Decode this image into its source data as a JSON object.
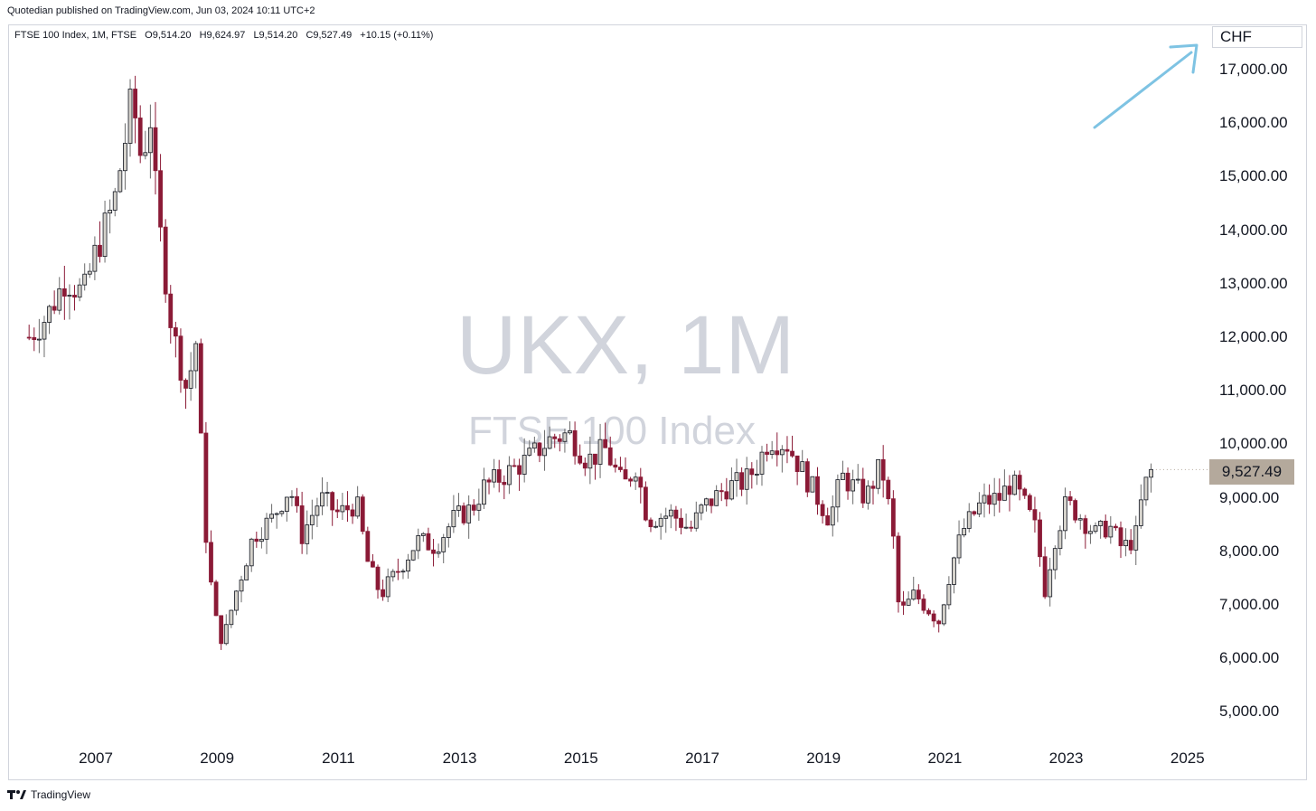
{
  "header": {
    "published": "Quotedian published on TradingView.com, Jun 03, 2024 10:11 UTC+2"
  },
  "legend": {
    "symbol": "FTSE 100 Index, 1M, FTSE",
    "open": "O9,514.20",
    "high": "H9,624.97",
    "low": "L9,514.20",
    "close": "C9,527.49",
    "change": "+10.15 (+0.11%)"
  },
  "watermark": {
    "symbol": "UKX, 1M",
    "description": "FTSE 100 Index"
  },
  "currency_label": "CHF",
  "last_price_label": "9,527.49",
  "footer": {
    "brand": "TradingView"
  },
  "colors": {
    "up": "#d5d2cb",
    "up_border": "#131722",
    "down": "#8b1a36",
    "price_tag": "#b4a99c",
    "arrow": "#7ec3e3",
    "watermark": "#d1d4dc"
  },
  "chart_data": {
    "type": "candlestick",
    "y_axis": {
      "min": 4500,
      "max": 17500,
      "ticks": [
        "5,000.00",
        "6,000.00",
        "7,000.00",
        "8,000.00",
        "9,000.00",
        "10,000.00",
        "11,000.00",
        "12,000.00",
        "13,000.00",
        "14,000.00",
        "15,000.00",
        "16,000.00",
        "17,000.00"
      ]
    },
    "x_axis": {
      "ticks": [
        "2007",
        "2009",
        "2011",
        "2013",
        "2015",
        "2017",
        "2019",
        "2021",
        "2023",
        "2025"
      ]
    },
    "series_points": [
      [
        "2005.9",
        12000
      ],
      [
        "2006.2",
        12400
      ],
      [
        "2006.5",
        13100
      ],
      [
        "2006.8",
        12800
      ],
      [
        "2007.0",
        13600
      ],
      [
        "2007.3",
        14500
      ],
      [
        "2007.5",
        15800
      ],
      [
        "2007.6",
        16500
      ],
      [
        "2007.75",
        15300
      ],
      [
        "2007.9",
        16100
      ],
      [
        "2008.0",
        14500
      ],
      [
        "2008.25",
        12200
      ],
      [
        "2008.5",
        11000
      ],
      [
        "2008.65",
        11900
      ],
      [
        "2008.8",
        8500
      ],
      [
        "2008.95",
        6800
      ],
      [
        "2009.1",
        6300
      ],
      [
        "2009.3",
        7200
      ],
      [
        "2009.6",
        8300
      ],
      [
        "2009.9",
        8600
      ],
      [
        "2010.2",
        9200
      ],
      [
        "2010.4",
        8300
      ],
      [
        "2010.7",
        9000
      ],
      [
        "2011.0",
        8700
      ],
      [
        "2011.3",
        8900
      ],
      [
        "2011.5",
        7700
      ],
      [
        "2011.7",
        7200
      ],
      [
        "2011.9",
        7500
      ],
      [
        "2012.3",
        8200
      ],
      [
        "2012.6",
        8100
      ],
      [
        "2012.9",
        8600
      ],
      [
        "2013.2",
        8800
      ],
      [
        "2013.4",
        9200
      ],
      [
        "2013.7",
        9400
      ],
      [
        "2014.1",
        9700
      ],
      [
        "2014.5",
        10100
      ],
      [
        "2014.8",
        10200
      ],
      [
        "2015.1",
        9700
      ],
      [
        "2015.4",
        9900
      ],
      [
        "2015.7",
        9200
      ],
      [
        "2015.9",
        9600
      ],
      [
        "2016.1",
        8600
      ],
      [
        "2016.5",
        8700
      ],
      [
        "2016.8",
        8400
      ],
      [
        "2017.0",
        8800
      ],
      [
        "2017.4",
        9200
      ],
      [
        "2017.7",
        9300
      ],
      [
        "2017.9",
        9600
      ],
      [
        "2018.1",
        10100
      ],
      [
        "2018.4",
        10000
      ],
      [
        "2018.6",
        9600
      ],
      [
        "2018.9",
        9000
      ],
      [
        "2019.1",
        8600
      ],
      [
        "2019.3",
        9400
      ],
      [
        "2019.5",
        9200
      ],
      [
        "2019.7",
        9000
      ],
      [
        "2019.9",
        9500
      ],
      [
        "2020.0",
        9400
      ],
      [
        "2020.15",
        8200
      ],
      [
        "2020.25",
        6800
      ],
      [
        "2020.5",
        7200
      ],
      [
        "2020.75",
        6900
      ],
      [
        "2020.9",
        6700
      ],
      [
        "2021.1",
        7700
      ],
      [
        "2021.3",
        8400
      ],
      [
        "2021.6",
        8900
      ],
      [
        "2021.9",
        9000
      ],
      [
        "2022.1",
        9300
      ],
      [
        "2022.3",
        8900
      ],
      [
        "2022.5",
        8400
      ],
      [
        "2022.65",
        7300
      ],
      [
        "2022.8",
        8200
      ],
      [
        "2023.0",
        8900
      ],
      [
        "2023.2",
        8700
      ],
      [
        "2023.5",
        8300
      ],
      [
        "2023.7",
        8500
      ],
      [
        "2023.9",
        8100
      ],
      [
        "2024.0",
        8100
      ],
      [
        "2024.15",
        8300
      ],
      [
        "2024.25",
        9000
      ],
      [
        "2024.35",
        9400
      ],
      [
        "2024.42",
        9527
      ]
    ]
  }
}
